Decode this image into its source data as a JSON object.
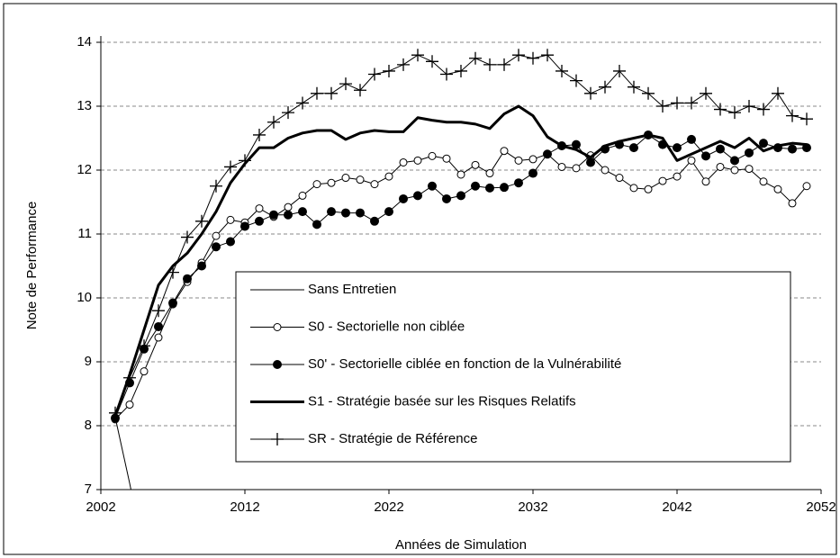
{
  "chart_data": {
    "type": "line",
    "xlabel": "Années de Simulation",
    "ylabel": "Note de Performance",
    "xlim": [
      2002,
      2052
    ],
    "xticks": [
      2002,
      2012,
      2022,
      2032,
      2042,
      2052
    ],
    "ylim": [
      7,
      14
    ],
    "yticks": [
      7,
      8,
      9,
      10,
      11,
      12,
      13,
      14
    ],
    "grid": true,
    "x": [
      2003,
      2004,
      2005,
      2006,
      2007,
      2008,
      2009,
      2010,
      2011,
      2012,
      2013,
      2014,
      2015,
      2016,
      2017,
      2018,
      2019,
      2020,
      2021,
      2022,
      2023,
      2024,
      2025,
      2026,
      2027,
      2028,
      2029,
      2030,
      2031,
      2032,
      2033,
      2034,
      2035,
      2036,
      2037,
      2038,
      2039,
      2040,
      2041,
      2042,
      2043,
      2044,
      2045,
      2046,
      2047,
      2048,
      2049,
      2050,
      2051
    ],
    "series": [
      {
        "name": "Sans Entretien",
        "color": "#000000",
        "line_width": 1,
        "marker": "none",
        "values": [
          8.13,
          7.1,
          6.0,
          null,
          null,
          null,
          null,
          null,
          null,
          null,
          null,
          null,
          null,
          null,
          null,
          null,
          null,
          null,
          null,
          null,
          null,
          null,
          null,
          null,
          null,
          null,
          null,
          null,
          null,
          null,
          null,
          null,
          null,
          null,
          null,
          null,
          null,
          null,
          null,
          null,
          null,
          null,
          null,
          null,
          null,
          null,
          null,
          null,
          null
        ]
      },
      {
        "name": "S0 - Sectorielle non ciblée",
        "color": "#000000",
        "line_width": 1,
        "marker": "open-circle",
        "values": [
          8.1,
          8.33,
          8.85,
          9.38,
          9.9,
          10.25,
          10.55,
          10.97,
          11.22,
          11.18,
          11.4,
          11.27,
          11.42,
          11.6,
          11.78,
          11.8,
          11.88,
          11.85,
          11.78,
          11.9,
          12.12,
          12.15,
          12.22,
          12.18,
          11.93,
          12.08,
          11.95,
          12.3,
          12.15,
          12.17,
          12.25,
          12.05,
          12.03,
          12.23,
          12.0,
          11.88,
          11.72,
          11.7,
          11.83,
          11.9,
          12.15,
          11.82,
          12.05,
          12.0,
          12.02,
          11.82,
          11.7,
          11.48,
          11.75
        ]
      },
      {
        "name": "S0' - Sectorielle ciblée en fonction de la Vulnérabilité",
        "color": "#000000",
        "line_width": 1,
        "marker": "filled-circle",
        "values": [
          8.12,
          8.67,
          9.2,
          9.55,
          9.92,
          10.3,
          10.5,
          10.8,
          10.88,
          11.12,
          11.2,
          11.3,
          11.3,
          11.35,
          11.15,
          11.35,
          11.33,
          11.33,
          11.2,
          11.35,
          11.55,
          11.6,
          11.75,
          11.55,
          11.6,
          11.75,
          11.72,
          11.73,
          11.8,
          11.95,
          12.25,
          12.38,
          12.4,
          12.12,
          12.33,
          12.4,
          12.35,
          12.55,
          12.4,
          12.35,
          12.48,
          12.22,
          12.33,
          12.15,
          12.27,
          12.42,
          12.35,
          12.33,
          12.35
        ]
      },
      {
        "name": "S1 - Stratégie basée sur les Risques Relatifs",
        "color": "#000000",
        "line_width": 3,
        "marker": "none",
        "values": [
          8.15,
          8.8,
          9.5,
          10.2,
          10.5,
          10.7,
          11.0,
          11.35,
          11.8,
          12.1,
          12.35,
          12.35,
          12.5,
          12.58,
          12.62,
          12.62,
          12.48,
          12.58,
          12.62,
          12.6,
          12.6,
          12.82,
          12.78,
          12.75,
          12.75,
          12.72,
          12.65,
          12.88,
          13.0,
          12.85,
          12.52,
          12.38,
          12.32,
          12.2,
          12.38,
          12.45,
          12.5,
          12.55,
          12.5,
          12.15,
          12.25,
          12.35,
          12.45,
          12.35,
          12.5,
          12.3,
          12.38,
          12.42,
          12.4
        ]
      },
      {
        "name": "SR - Stratégie de Référence",
        "color": "#000000",
        "line_width": 1,
        "marker": "plus",
        "values": [
          8.2,
          8.75,
          9.25,
          9.8,
          10.4,
          10.95,
          11.2,
          11.75,
          12.05,
          12.15,
          12.55,
          12.75,
          12.9,
          13.05,
          13.2,
          13.2,
          13.35,
          13.25,
          13.5,
          13.55,
          13.65,
          13.8,
          13.7,
          13.5,
          13.55,
          13.75,
          13.65,
          13.65,
          13.8,
          13.75,
          13.8,
          13.55,
          13.4,
          13.2,
          13.3,
          13.55,
          13.3,
          13.2,
          13.0,
          13.05,
          13.05,
          13.2,
          12.95,
          12.9,
          13.0,
          12.95,
          13.2,
          12.85,
          12.8
        ]
      }
    ]
  }
}
